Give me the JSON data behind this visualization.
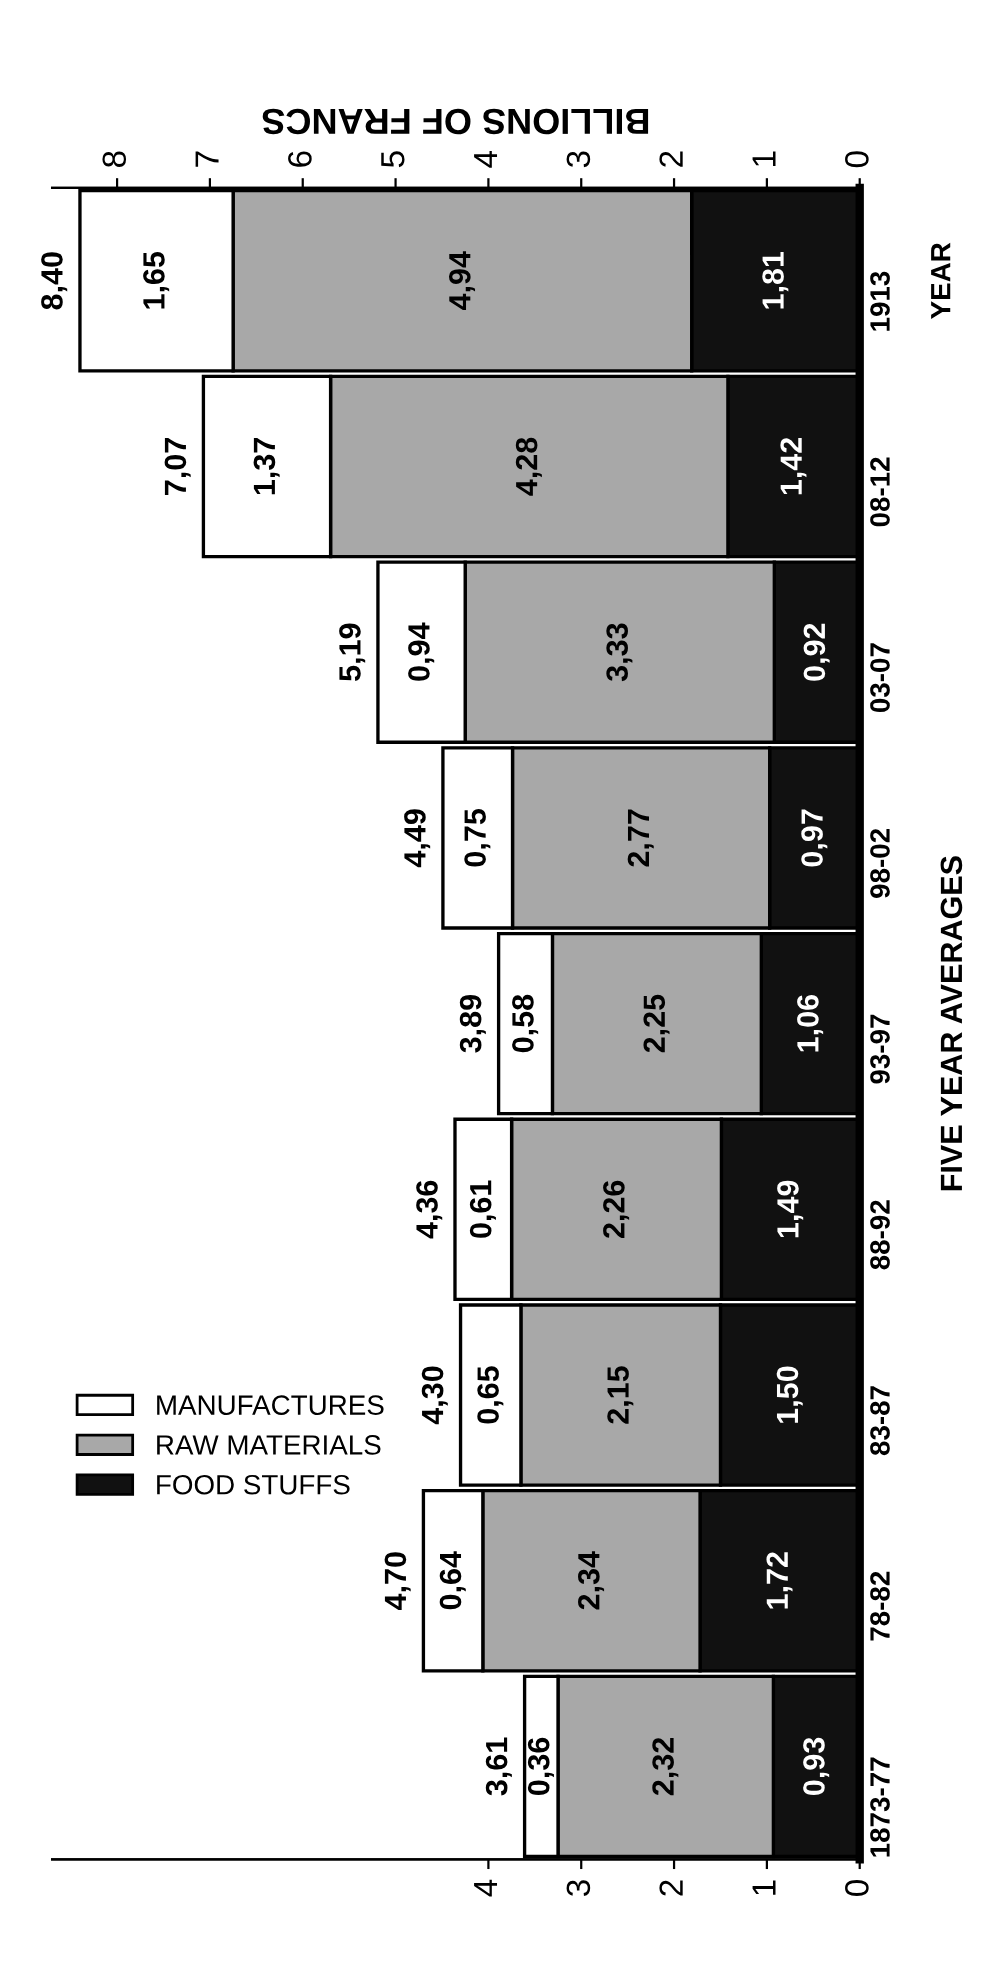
{
  "chart_data": {
    "type": "bar",
    "orientation": "horizontal",
    "stacked": true,
    "categories": [
      "1913",
      "08-12",
      "03-07",
      "98-02",
      "93-97",
      "88-92",
      "83-87",
      "78-82",
      "1873-77"
    ],
    "series": [
      {
        "name": "FOOD STUFFS",
        "color": "#111111",
        "values": [
          1.81,
          1.42,
          0.92,
          0.97,
          1.06,
          1.49,
          1.5,
          1.72,
          0.93
        ],
        "value_labels": [
          "1,81",
          "1,42",
          "0,92",
          "0,97",
          "1,06",
          "1,49",
          "1,50",
          "1,72",
          "0,93"
        ]
      },
      {
        "name": "RAW MATERIALS",
        "color": "#a8a8a8",
        "values": [
          4.94,
          4.28,
          3.33,
          2.77,
          2.25,
          2.26,
          2.15,
          2.34,
          2.32
        ],
        "value_labels": [
          "4,94",
          "4,28",
          "3,33",
          "2,77",
          "2,25",
          "2,26",
          "2,15",
          "2,34",
          "2,32"
        ]
      },
      {
        "name": "MANUFACTURES",
        "color": "#ffffff",
        "values": [
          1.65,
          1.37,
          0.94,
          0.75,
          0.58,
          0.61,
          0.65,
          0.64,
          0.36
        ],
        "value_labels": [
          "1,65",
          "1,37",
          "0,94",
          "0,75",
          "0,58",
          "0,61",
          "0,65",
          "0,64",
          "0,36"
        ]
      }
    ],
    "totals": [
      "8,40",
      "7,07",
      "5,19",
      "4,49",
      "3,89",
      "4,36",
      "4,30",
      "4,70",
      "3,61"
    ],
    "xlim": [
      8.7,
      0
    ],
    "xticks": [
      0,
      1,
      2,
      3,
      4
    ],
    "x2lim": [
      8.7,
      0
    ],
    "x2ticks": [
      0,
      1,
      2,
      3,
      4,
      5,
      6,
      7,
      8
    ],
    "x2label": "BILLIONS OF FRANCS",
    "ylabel": "FIVE YEAR AVERAGES",
    "annotations": [
      "YEAR"
    ],
    "legend": "bottom left"
  }
}
